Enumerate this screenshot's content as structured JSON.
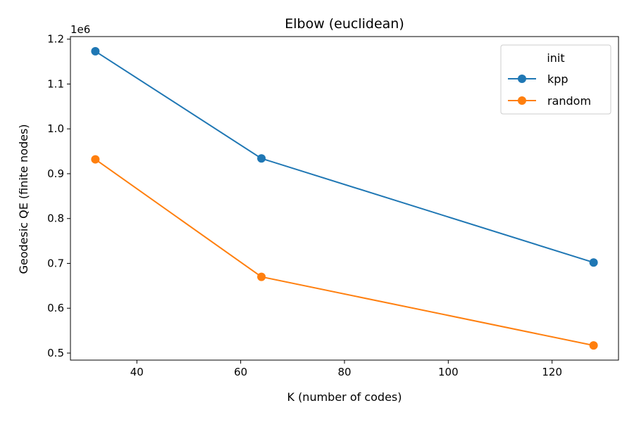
{
  "chart_data": {
    "type": "line",
    "title": "Elbow (euclidean)",
    "xlabel": "K (number of codes)",
    "ylabel": "Geodesic QE (finite nodes)",
    "y_offset_label": "1e6",
    "xlim": [
      27.2,
      132.8
    ],
    "ylim": [
      0.4843,
      1.2058
    ],
    "x_ticks": [
      40,
      60,
      80,
      100,
      120
    ],
    "x_tick_labels": [
      "40",
      "60",
      "80",
      "100",
      "120"
    ],
    "y_ticks": [
      0.5,
      0.6,
      0.7,
      0.8,
      0.9,
      1.0,
      1.1,
      1.2
    ],
    "y_tick_labels": [
      "0.5",
      "0.6",
      "0.7",
      "0.8",
      "0.9",
      "1.0",
      "1.1",
      "1.2"
    ],
    "grid": false,
    "legend": {
      "title": "init",
      "placement": "top-right"
    },
    "x": [
      32,
      64,
      128
    ],
    "series": [
      {
        "name": "kpp",
        "color": "#1f77b4",
        "values": [
          1.173,
          0.934,
          0.702
        ]
      },
      {
        "name": "random",
        "color": "#ff7f0e",
        "values": [
          0.932,
          0.67,
          0.517
        ]
      }
    ]
  }
}
